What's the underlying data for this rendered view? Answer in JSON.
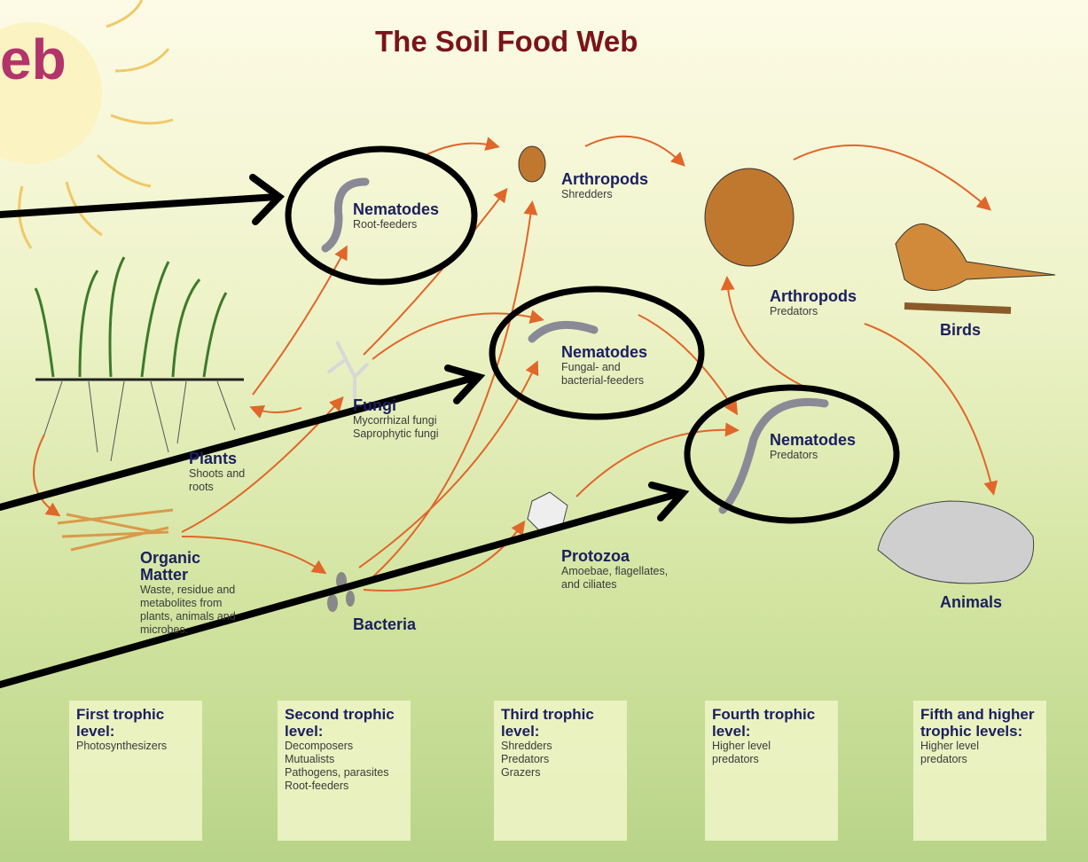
{
  "header": {
    "partial_title": "eb",
    "title": "The Soil Food Web"
  },
  "nodes": [
    {
      "label": "Nematodes",
      "desc": [
        "Root-feeders"
      ]
    },
    {
      "label": "Arthropods",
      "desc": [
        "Shredders"
      ]
    },
    {
      "label": "Arthropods",
      "desc": [
        "Predators"
      ]
    },
    {
      "label": "Birds",
      "desc": []
    },
    {
      "label": "Nematodes",
      "desc": [
        "Fungal- and",
        "bacterial-feeders"
      ]
    },
    {
      "label": "Nematodes",
      "desc": [
        "Predators"
      ]
    },
    {
      "label": "Fungi",
      "desc": [
        "Mycorrhizal fungi",
        "Saprophytic fungi"
      ]
    },
    {
      "label": "Plants",
      "desc": [
        "Shoots and",
        "roots"
      ]
    },
    {
      "label": "Organic Matter",
      "desc": [
        "Waste, residue and",
        "metabolites from",
        "plants, animals and",
        "microbes."
      ]
    },
    {
      "label": "Bacteria",
      "desc": []
    },
    {
      "label": "Protozoa",
      "desc": [
        "Amoebae, flagellates,",
        "and ciliates"
      ]
    },
    {
      "label": "Animals",
      "desc": []
    }
  ],
  "trophic_levels": [
    {
      "title": "First trophic level:",
      "items": [
        "Photosynthesizers"
      ]
    },
    {
      "title": "Second trophic level:",
      "items": [
        "Decomposers",
        "Mutualists",
        "Pathogens, parasites",
        "Root-feeders"
      ]
    },
    {
      "title": "Third trophic level:",
      "items": [
        "Shredders",
        "Predators",
        "Grazers"
      ]
    },
    {
      "title": "Fourth trophic level:",
      "items": [
        "Higher level",
        "predators"
      ]
    },
    {
      "title": "Fifth and higher trophic levels:",
      "items": [
        "Higher level",
        "predators"
      ]
    }
  ]
}
